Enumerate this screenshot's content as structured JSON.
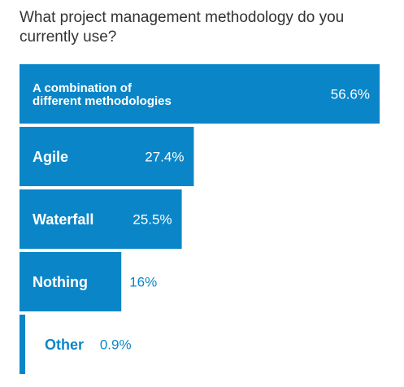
{
  "chart_data": {
    "type": "bar",
    "orientation": "horizontal",
    "title": "What project management methodology do you currently use?",
    "categories": [
      "A combination of different methodologies",
      "Agile",
      "Waterfall",
      "Nothing",
      "Other"
    ],
    "values": [
      56.6,
      27.4,
      25.5,
      16,
      0.9
    ],
    "value_labels": [
      "56.6%",
      "27.4%",
      "25.5%",
      "16%",
      "0.9%"
    ],
    "xlim": [
      0,
      56.6
    ],
    "grid": false,
    "legend": "none",
    "bar_color": "#0a86c8",
    "label_color_outside": "#0a86c8"
  }
}
